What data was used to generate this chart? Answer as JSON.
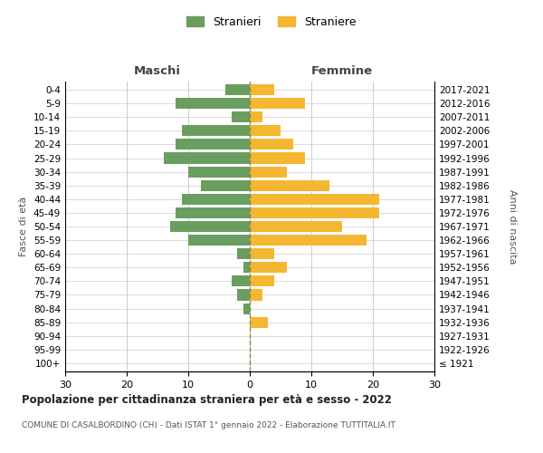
{
  "age_groups": [
    "100+",
    "95-99",
    "90-94",
    "85-89",
    "80-84",
    "75-79",
    "70-74",
    "65-69",
    "60-64",
    "55-59",
    "50-54",
    "45-49",
    "40-44",
    "35-39",
    "30-34",
    "25-29",
    "20-24",
    "15-19",
    "10-14",
    "5-9",
    "0-4"
  ],
  "birth_years": [
    "≤ 1921",
    "1922-1926",
    "1927-1931",
    "1932-1936",
    "1937-1941",
    "1942-1946",
    "1947-1951",
    "1952-1956",
    "1957-1961",
    "1962-1966",
    "1967-1971",
    "1972-1976",
    "1977-1981",
    "1982-1986",
    "1987-1991",
    "1992-1996",
    "1997-2001",
    "2002-2006",
    "2007-2011",
    "2012-2016",
    "2017-2021"
  ],
  "maschi": [
    0,
    0,
    0,
    0,
    1,
    2,
    3,
    1,
    2,
    10,
    13,
    12,
    11,
    8,
    10,
    14,
    12,
    11,
    3,
    12,
    4
  ],
  "femmine": [
    0,
    0,
    0,
    3,
    0,
    2,
    4,
    6,
    4,
    19,
    15,
    21,
    21,
    13,
    6,
    9,
    7,
    5,
    2,
    9,
    4
  ],
  "maschi_color": "#6a9e5e",
  "femmine_color": "#f5b731",
  "title": "Popolazione per cittadinanza straniera per età e sesso - 2022",
  "subtitle": "COMUNE DI CASALBORDINO (CH) - Dati ISTAT 1° gennaio 2022 - Elaborazione TUTTITALIA.IT",
  "xlabel_left": "Maschi",
  "xlabel_right": "Femmine",
  "ylabel_left": "Fasce di età",
  "ylabel_right": "Anni di nascita",
  "xlim": 30,
  "legend_maschi": "Stranieri",
  "legend_femmine": "Straniere",
  "grid_color": "#cccccc",
  "bar_height": 0.8
}
